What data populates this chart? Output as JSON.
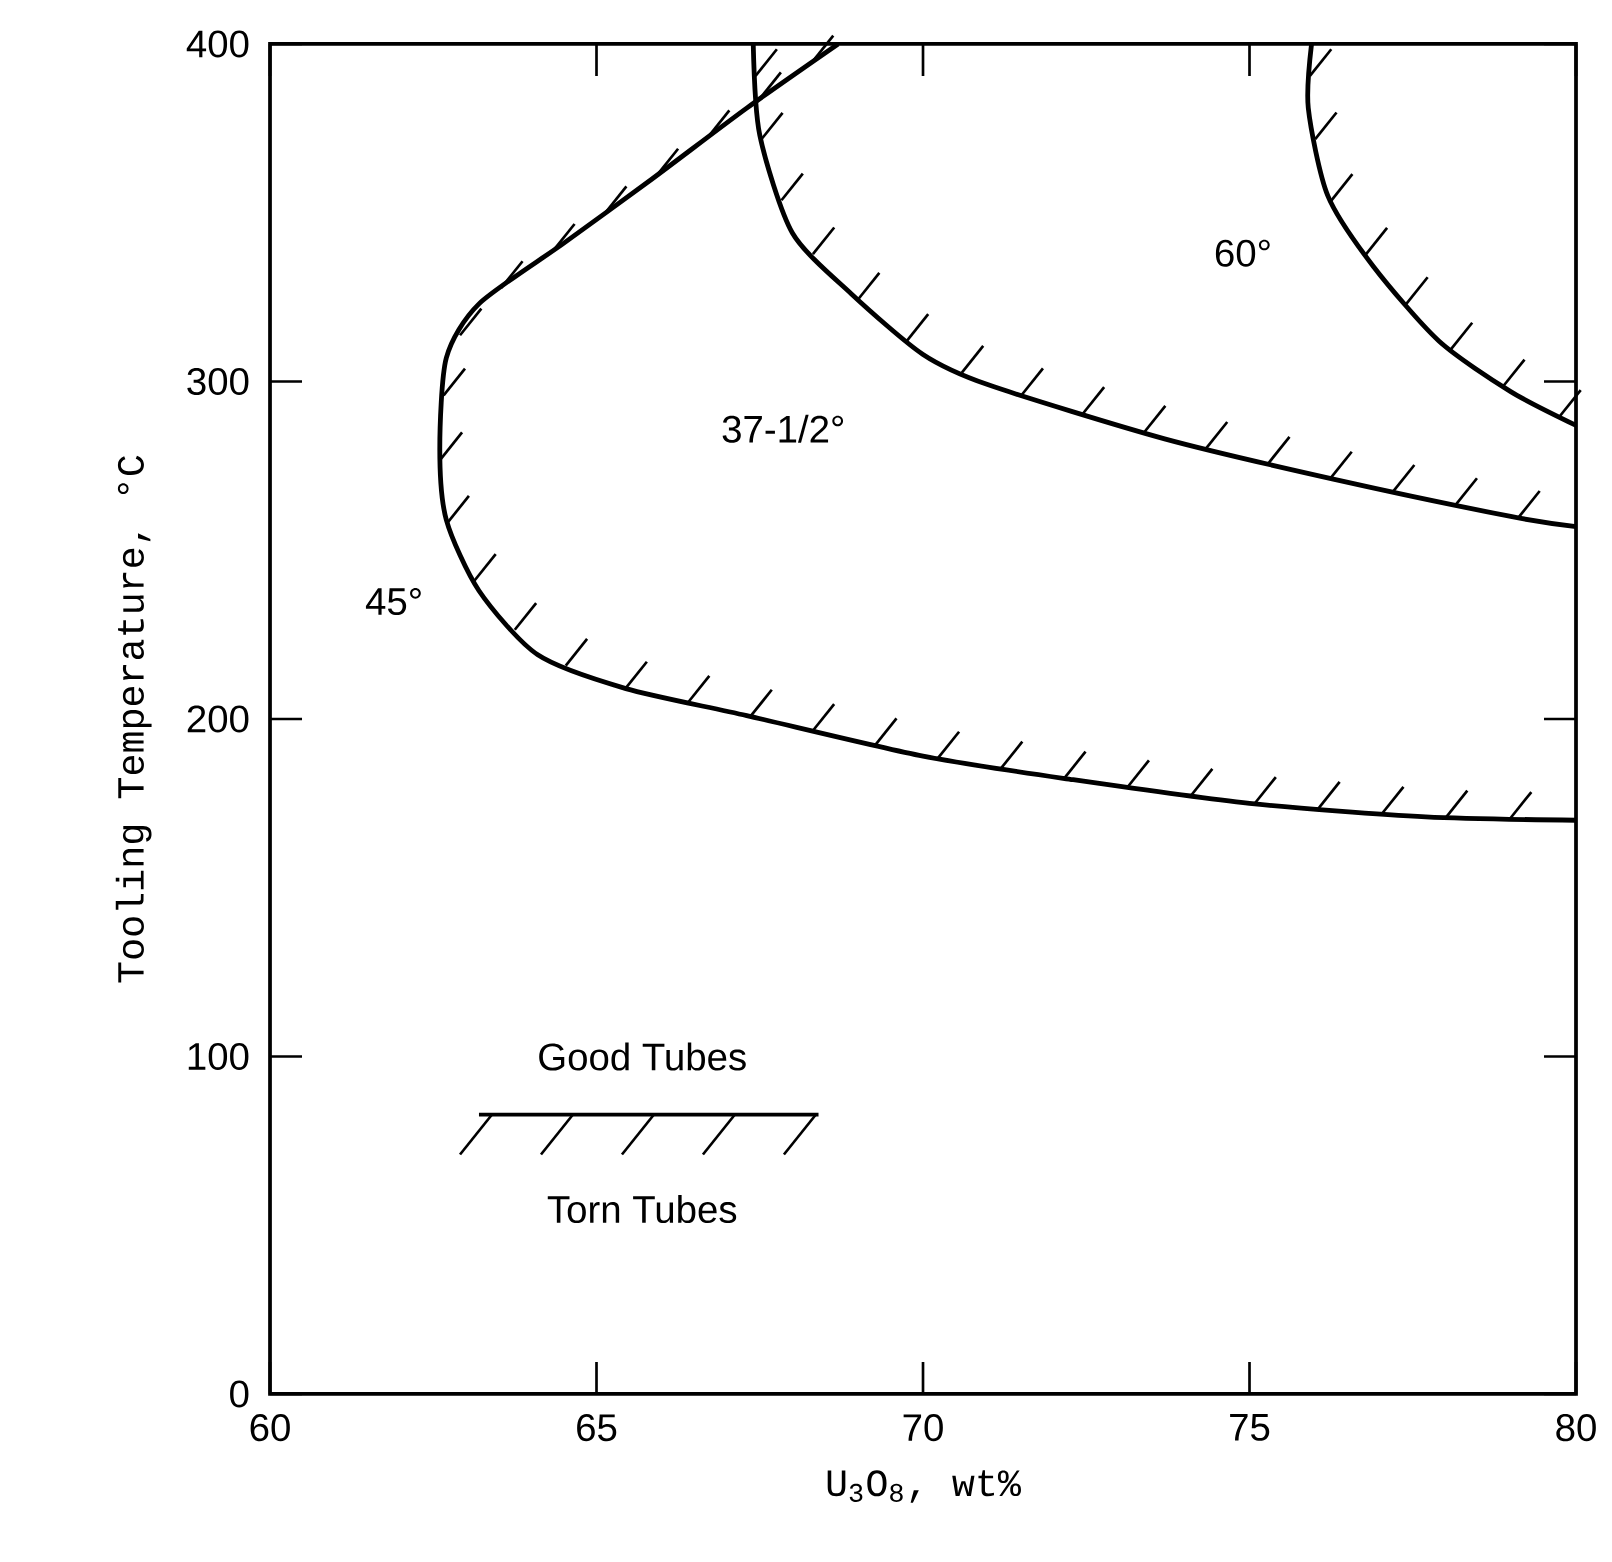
{
  "chart_data": {
    "type": "line",
    "xlabel": "U$_{3}$O$_{8}$, wt%",
    "ylabel": "Tooling Temperature, °C",
    "xlim": [
      60,
      80
    ],
    "ylim": [
      0,
      400
    ],
    "xticks": [
      60,
      65,
      70,
      75,
      80
    ],
    "yticks": [
      0,
      100,
      200,
      300,
      400
    ],
    "grid": false,
    "marker": "none",
    "line_style": "solid",
    "series": [
      {
        "color": "#000000",
        "x": [
          68.7,
          67.3,
          65.85,
          64.5,
          63.2,
          62.7,
          62.6,
          62.7,
          63.2,
          64.1,
          65.45,
          67.3,
          70.0,
          72.3,
          75.0,
          77.7,
          80.0
        ],
        "values": [
          400,
          381,
          360,
          341,
          323,
          307,
          280,
          259,
          238,
          219,
          209,
          201,
          189,
          182,
          175,
          171,
          170
        ]
      },
      {
        "color": "#000000",
        "x": [
          67.4,
          67.5,
          68.0,
          68.9,
          70.0,
          71.0,
          73.7,
          76.3,
          79.0,
          80.0
        ],
        "values": [
          400,
          373,
          344,
          326,
          308,
          299,
          283,
          271,
          260,
          257
        ]
      },
      {
        "color": "#000000",
        "x": [
          75.95,
          75.9,
          76.2,
          76.9,
          77.9,
          79.0,
          80.0
        ],
        "values": [
          400,
          381,
          355,
          334,
          312,
          297,
          287
        ]
      }
    ],
    "annotations": [
      "45°",
      "37-1/2°",
      "60°",
      "Good Tubes",
      "Torn Tubes"
    ]
  }
}
